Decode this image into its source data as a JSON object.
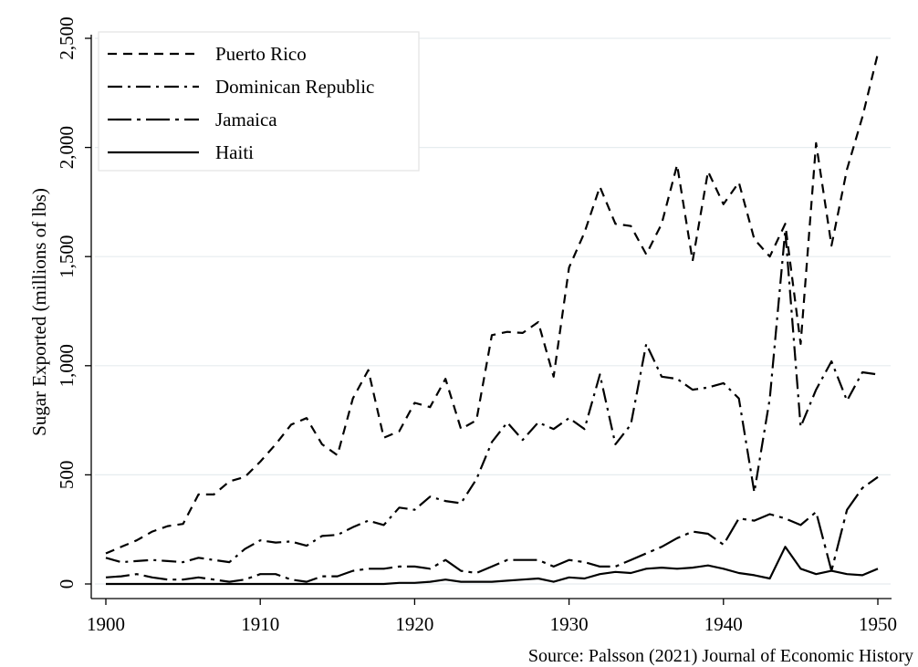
{
  "chart_data": {
    "type": "line",
    "title": "",
    "xlabel": "",
    "ylabel": "Sugar Exported (millions of lbs)",
    "source_note": "Source: Palsson (2021) Journal of Economic History",
    "xlim": [
      1900,
      1950
    ],
    "ylim": [
      0,
      2500
    ],
    "x_ticks": [
      1900,
      1910,
      1920,
      1930,
      1940,
      1950
    ],
    "y_ticks": [
      0,
      500,
      1000,
      1500,
      2000,
      2500
    ],
    "y_tick_labels": [
      "0",
      "500",
      "1,000",
      "1,500",
      "2,000",
      "2,500"
    ],
    "grid": true,
    "legend_position": "top-left",
    "x": [
      1900,
      1901,
      1902,
      1903,
      1904,
      1905,
      1906,
      1907,
      1908,
      1909,
      1910,
      1911,
      1912,
      1913,
      1914,
      1915,
      1916,
      1917,
      1918,
      1919,
      1920,
      1921,
      1922,
      1923,
      1924,
      1925,
      1926,
      1927,
      1928,
      1929,
      1930,
      1931,
      1932,
      1933,
      1934,
      1935,
      1936,
      1937,
      1938,
      1939,
      1940,
      1941,
      1942,
      1943,
      1944,
      1945,
      1946,
      1947,
      1948,
      1949,
      1950
    ],
    "series": [
      {
        "name": "Puerto Rico",
        "dash": "10,7",
        "values": [
          140,
          170,
          200,
          240,
          265,
          275,
          410,
          410,
          470,
          490,
          560,
          640,
          730,
          760,
          640,
          590,
          850,
          980,
          670,
          700,
          830,
          810,
          940,
          710,
          750,
          1140,
          1155,
          1150,
          1200,
          950,
          1450,
          1610,
          1820,
          1650,
          1640,
          1510,
          1650,
          1920,
          1480,
          1890,
          1740,
          1840,
          1580,
          1500,
          1650,
          1100,
          2020,
          1550,
          1900,
          2140,
          2430
        ]
      },
      {
        "name": "Dominican Republic",
        "dash": "16,6,3,6",
        "values": [
          120,
          100,
          105,
          110,
          105,
          100,
          120,
          110,
          100,
          160,
          200,
          190,
          195,
          175,
          220,
          225,
          260,
          290,
          270,
          350,
          340,
          400,
          380,
          370,
          480,
          650,
          740,
          660,
          740,
          710,
          760,
          710,
          960,
          640,
          730,
          1100,
          950,
          940,
          890,
          900,
          920,
          850,
          420,
          850,
          1620,
          720,
          890,
          1020,
          840,
          970,
          960
        ]
      },
      {
        "name": "Jamaica",
        "dash": "26,6,4,6",
        "values": [
          30,
          35,
          45,
          30,
          20,
          20,
          30,
          20,
          10,
          20,
          45,
          45,
          20,
          10,
          35,
          35,
          60,
          70,
          70,
          80,
          80,
          70,
          110,
          60,
          50,
          80,
          110,
          110,
          110,
          80,
          110,
          100,
          80,
          80,
          110,
          140,
          170,
          210,
          240,
          230,
          180,
          300,
          290,
          320,
          300,
          270,
          330,
          60,
          340,
          440,
          490
        ]
      },
      {
        "name": "Haiti",
        "dash": "",
        "values": [
          0,
          0,
          0,
          0,
          0,
          0,
          0,
          0,
          0,
          0,
          0,
          0,
          0,
          0,
          0,
          0,
          0,
          0,
          0,
          5,
          5,
          10,
          20,
          10,
          10,
          10,
          15,
          20,
          25,
          10,
          30,
          25,
          45,
          55,
          50,
          70,
          75,
          70,
          75,
          85,
          70,
          50,
          40,
          25,
          170,
          70,
          45,
          60,
          45,
          40,
          70
        ]
      }
    ]
  }
}
